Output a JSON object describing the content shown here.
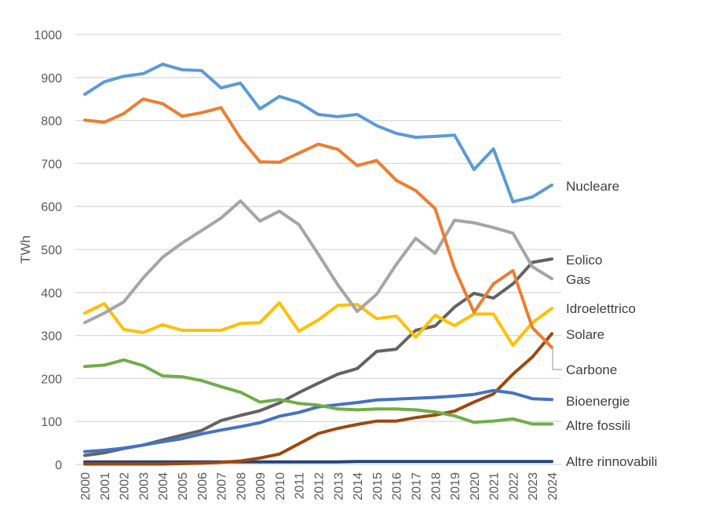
{
  "chart_data": {
    "type": "line",
    "title": "",
    "xlabel": "",
    "ylabel": "TWh",
    "ylim": [
      0,
      1000
    ],
    "yticks": [
      0,
      100,
      200,
      300,
      400,
      500,
      600,
      700,
      800,
      900,
      1000
    ],
    "grid": true,
    "legend": "right (inline labels at line ends)",
    "x": [
      "2000",
      "2001",
      "2002",
      "2003",
      "2004",
      "2005",
      "2006",
      "2007",
      "2008",
      "2009",
      "2010",
      "2011",
      "2012",
      "2013",
      "2014",
      "2015",
      "2016",
      "2017",
      "2018",
      "2019",
      "2020",
      "2021",
      "2022",
      "2023",
      "2024"
    ],
    "series": [
      {
        "name": "Nucleare",
        "color": "#5b9bd5",
        "values": [
          861,
          890,
          903,
          909,
          931,
          918,
          916,
          876,
          887,
          827,
          856,
          842,
          814,
          809,
          814,
          788,
          770,
          761,
          763,
          766,
          686,
          734,
          611,
          622,
          650
        ]
      },
      {
        "name": "Carbone",
        "color": "#ed7d31",
        "values": [
          801,
          796,
          816,
          850,
          839,
          810,
          818,
          830,
          759,
          704,
          703,
          724,
          745,
          733,
          695,
          707,
          661,
          637,
          595,
          456,
          354,
          420,
          451,
          318,
          272
        ]
      },
      {
        "name": "Gas",
        "color": "#a5a5a5",
        "values": [
          330,
          352,
          378,
          434,
          482,
          515,
          544,
          573,
          613,
          566,
          589,
          558,
          489,
          418,
          356,
          396,
          465,
          526,
          491,
          568,
          562,
          551,
          538,
          460,
          432
        ]
      },
      {
        "name": "Idroelettrico",
        "color": "#ffc000",
        "values": [
          352,
          374,
          314,
          307,
          325,
          312,
          312,
          312,
          328,
          330,
          376,
          310,
          336,
          370,
          372,
          339,
          345,
          296,
          347,
          323,
          350,
          350,
          277,
          330,
          363
        ]
      },
      {
        "name": "Altre fossili",
        "color": "#70ad47",
        "values": [
          228,
          231,
          243,
          230,
          206,
          204,
          195,
          181,
          168,
          145,
          151,
          142,
          138,
          129,
          127,
          129,
          129,
          127,
          122,
          113,
          98,
          101,
          106,
          94,
          94
        ]
      },
      {
        "name": "Bioenergie",
        "color": "#4472c4",
        "values": [
          30,
          33,
          38,
          45,
          53,
          60,
          71,
          80,
          88,
          97,
          112,
          121,
          134,
          139,
          144,
          150,
          152,
          154,
          156,
          159,
          163,
          172,
          166,
          153,
          151
        ]
      },
      {
        "name": "Eolico",
        "color": "#636363",
        "values": [
          21,
          27,
          37,
          45,
          57,
          68,
          79,
          102,
          114,
          125,
          143,
          167,
          189,
          210,
          223,
          263,
          268,
          312,
          322,
          366,
          398,
          387,
          420,
          470,
          478
        ]
      },
      {
        "name": "Solare",
        "color": "#9e480e",
        "values": [
          1,
          1,
          1,
          1,
          1,
          2,
          3,
          5,
          8,
          15,
          24,
          48,
          72,
          84,
          93,
          101,
          101,
          109,
          115,
          124,
          145,
          164,
          210,
          250,
          304
        ]
      },
      {
        "name": "Altre rinnovabili",
        "color": "#264478",
        "values": [
          6,
          6,
          6,
          6,
          6,
          6,
          6,
          6,
          6,
          6,
          6,
          6,
          6,
          6,
          7,
          7,
          7,
          7,
          7,
          7,
          7,
          7,
          7,
          7,
          7
        ]
      }
    ],
    "legend_entries": [
      {
        "label": "Nucleare",
        "series": "Nucleare"
      },
      {
        "label": "Eolico",
        "series": "Eolico"
      },
      {
        "label": "Gas",
        "series": "Gas"
      },
      {
        "label": "Idroelettrico",
        "series": "Idroelettrico"
      },
      {
        "label": "Solare",
        "series": "Solare"
      },
      {
        "label": "Carbone",
        "series": "Carbone"
      },
      {
        "label": "Bioenergie",
        "series": "Bioenergie"
      },
      {
        "label": "Altre fossili",
        "series": "Altre fossili"
      },
      {
        "label": "Altre rinnovabili",
        "series": "Altre rinnovabili"
      }
    ]
  }
}
